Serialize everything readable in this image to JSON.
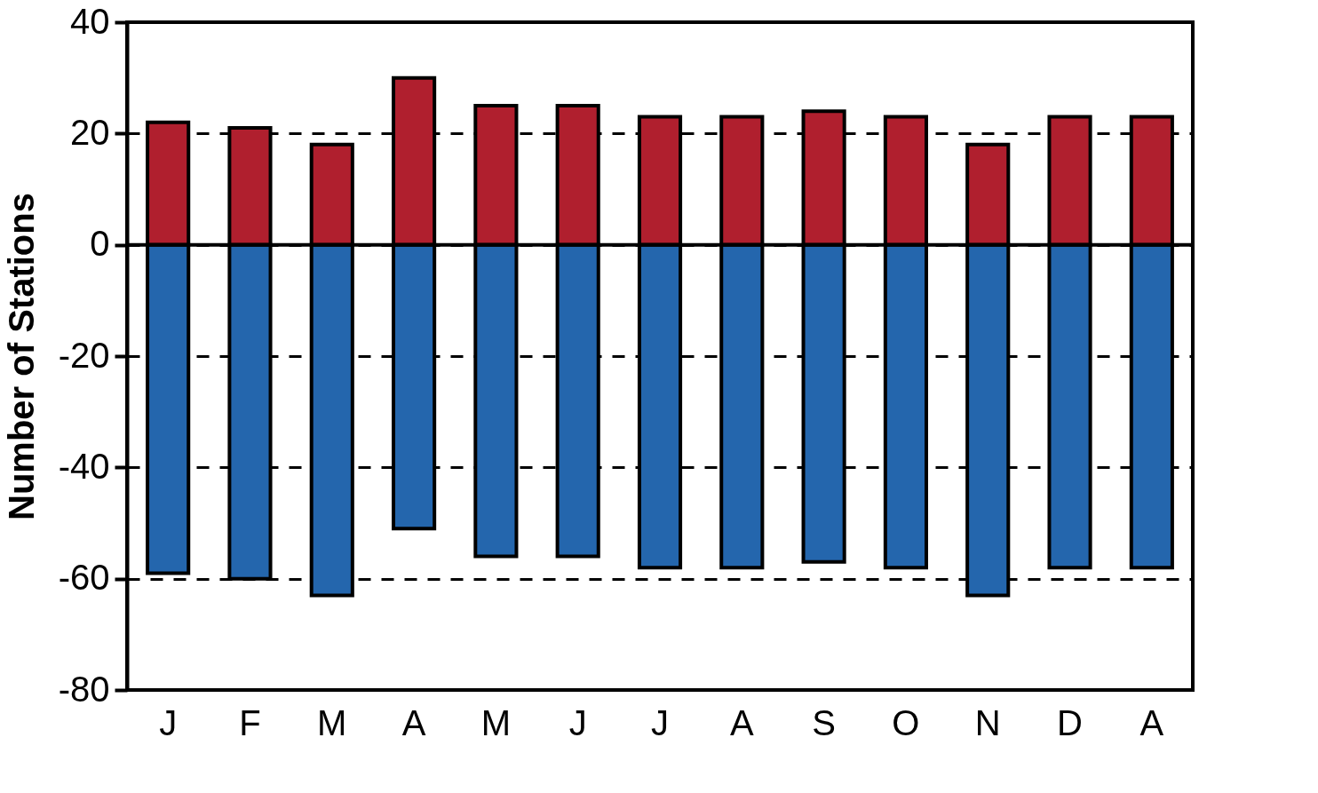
{
  "chart_data": {
    "type": "bar",
    "ylabel": "Number of Stations",
    "categories": [
      "J",
      "F",
      "M",
      "A",
      "M",
      "J",
      "J",
      "A",
      "S",
      "O",
      "N",
      "D",
      "A"
    ],
    "series": [
      {
        "color": "#b01f2e",
        "values": [
          22,
          21,
          18,
          30,
          25,
          25,
          23,
          23,
          24,
          23,
          18,
          23,
          23
        ]
      },
      {
        "color": "#2466ad",
        "values": [
          -59,
          -60,
          -63,
          -51,
          -56,
          -56,
          -58,
          -58,
          -57,
          -58,
          -63,
          -58,
          -58
        ]
      }
    ],
    "stacked": true,
    "ylim": [
      -80,
      40
    ],
    "yticks": [
      -80,
      -60,
      -40,
      -20,
      0,
      20,
      40
    ],
    "grid": "y",
    "ref_lines": [
      {
        "axis": "y",
        "value": 0,
        "color": "#000000",
        "line_style": "solid"
      }
    ]
  }
}
